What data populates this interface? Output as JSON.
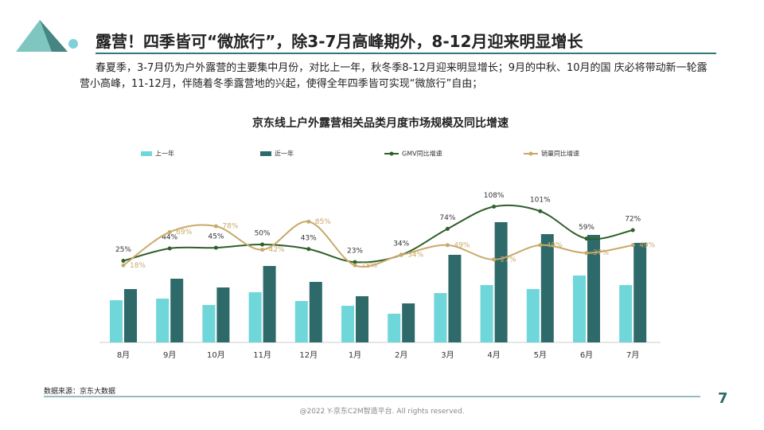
{
  "header": {
    "title": "露营！四季皆可“微旅行”，除3-7月高峰期外，8-12月迎来明显增长",
    "body": "春夏季，3-7月仍为户外露营的主要集中月份，对比上一年，秋冬季8-12月迎来明显增长；9月的中秋、10月的国 庆必将带动新一轮露营小高峰，11-12月，伴随着冬季露营地的兴起，使得全年四季皆可实现“微旅行”自由；"
  },
  "chart_data": {
    "type": "bar",
    "title": "京东线上户外露营相关品类月度市场规模及同比增速",
    "categories": [
      "8月",
      "9月",
      "10月",
      "11月",
      "12月",
      "1月",
      "2月",
      "3月",
      "4月",
      "5月",
      "6月",
      "7月"
    ],
    "series": [
      {
        "name": "上一年",
        "color": "#6fd6da",
        "type": "bar",
        "values": [
          53,
          55,
          47,
          63,
          52,
          46,
          36,
          62,
          72,
          67,
          84,
          72
        ]
      },
      {
        "name": "近一年",
        "color": "#2f6a6a",
        "type": "bar",
        "values": [
          67,
          80,
          69,
          96,
          76,
          58,
          49,
          110,
          151,
          136,
          135,
          125
        ]
      },
      {
        "name": "GMV同比增速",
        "color": "#2f5f2a",
        "type": "line",
        "axis": "y2",
        "values": [
          25,
          44,
          45,
          50,
          43,
          23,
          34,
          74,
          108,
          101,
          59,
          72
        ],
        "value_labels": [
          "25%",
          "44%",
          "45%",
          "50%",
          "43%",
          "23%",
          "34%",
          "74%",
          "108%",
          "101%",
          "59%",
          "72%"
        ]
      },
      {
        "name": "销量同比增速",
        "color": "#c9a96a",
        "type": "line",
        "axis": "y2",
        "values": [
          18,
          69,
          78,
          42,
          85,
          18,
          34,
          49,
          27,
          49,
          37,
          49
        ],
        "value_labels": [
          "18%",
          "69%",
          "78%",
          "42%",
          "85%",
          "18%",
          "34%",
          "49%",
          "27%",
          "49%",
          "37%",
          "49%"
        ]
      }
    ],
    "ylim": [
      0,
      250
    ],
    "y2lim": [
      -100,
      205
    ]
  },
  "footer": {
    "source": "数据来源：京东大数据",
    "copyright": "@2022 Y-京东C2M智造平台. All rights reserved.",
    "page": "7"
  }
}
